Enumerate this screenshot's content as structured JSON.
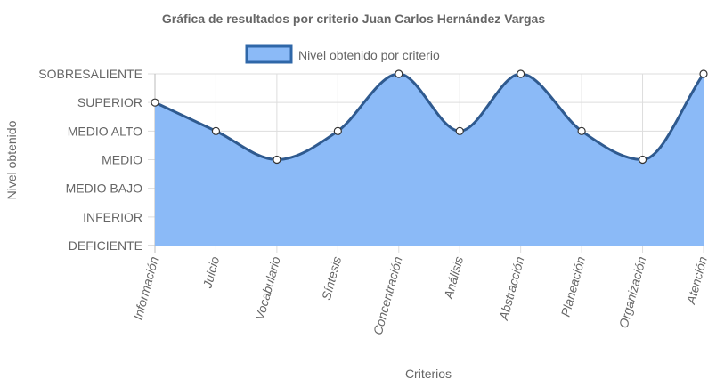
{
  "chart_data": {
    "type": "area",
    "title": "Gráfica de resultados por criterio Juan Carlos Hernández Vargas",
    "xlabel": "Criterios",
    "ylabel": "Nivel obtenido",
    "legend_position": "top",
    "grid": true,
    "y_levels": [
      "DEFICIENTE",
      "INFERIOR",
      "MEDIO BAJO",
      "MEDIO",
      "MEDIO ALTO",
      "SUPERIOR",
      "SOBRESALIENTE"
    ],
    "categories": [
      "Información",
      "Juicio",
      "Vocabulario",
      "Síntesis",
      "Concentración",
      "Análisis",
      "Abstracción",
      "Planeación",
      "Organización",
      "Atención"
    ],
    "series": [
      {
        "name": "Nivel obtenido por criterio",
        "values": [
          "SUPERIOR",
          "MEDIO ALTO",
          "MEDIO",
          "MEDIO ALTO",
          "SOBRESALIENTE",
          "MEDIO ALTO",
          "SOBRESALIENTE",
          "MEDIO ALTO",
          "MEDIO",
          "SOBRESALIENTE"
        ]
      }
    ],
    "colors": {
      "fill": "#8bbaf7",
      "line": "#2f5a8f",
      "legend_fill": "#8bbaf7",
      "legend_border": "#2f67a8",
      "grid": "#dddddd",
      "text": "#666666"
    }
  }
}
